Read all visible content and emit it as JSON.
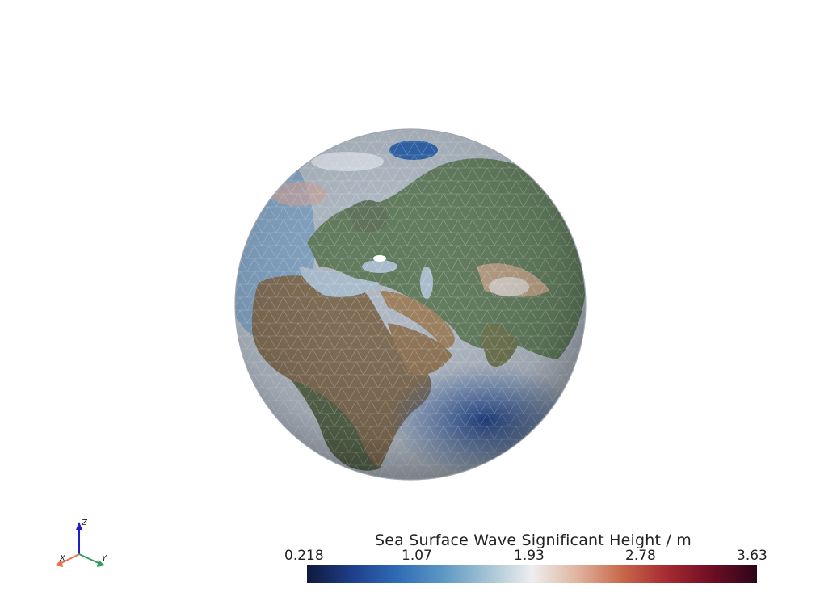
{
  "scalar_bar": {
    "title": "Sea Surface Wave Significant Height / m",
    "ticks": [
      "0.218",
      "1.07",
      "1.93",
      "2.78",
      "3.63"
    ],
    "colormap": [
      "#0f1a3c",
      "#1f3e8a",
      "#2f6bb5",
      "#5b97c3",
      "#a3c3d3",
      "#eeeeee",
      "#e0b4a0",
      "#c8684a",
      "#a62a32",
      "#6e0d24",
      "#2b0619"
    ]
  },
  "axes": {
    "x_label": "X",
    "y_label": "Y",
    "z_label": "Z",
    "x_color": "#e8704a",
    "y_color": "#3a9a5c",
    "z_color": "#1f1fc8"
  },
  "globe": {
    "ocean_color": "#b0bac4",
    "land_color": "#6e6a4f",
    "mesh_color": "#ffffff"
  }
}
